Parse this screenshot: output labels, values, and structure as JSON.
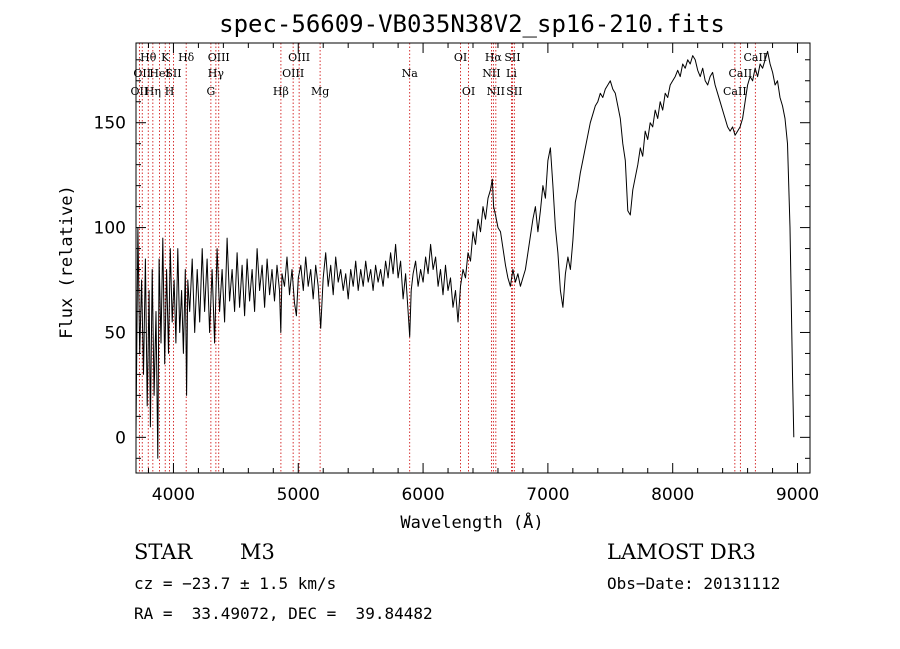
{
  "chart_data": {
    "type": "line",
    "title": "spec-56609-VB035N38V2_sp16-210.fits",
    "xlabel": "Wavelength (Å)",
    "ylabel": "Flux (relative)",
    "xlim": [
      3700,
      9100
    ],
    "ylim": [
      -17,
      188
    ],
    "x_ticks": [
      4000,
      5000,
      6000,
      7000,
      8000,
      9000
    ],
    "y_ticks": [
      0,
      50,
      100,
      150
    ],
    "line_color": "#000000",
    "marker_color": "#cc0000",
    "spectral_lines": [
      {
        "wavelength": 3727,
        "label": "OII",
        "row": 3
      },
      {
        "wavelength": 3750,
        "label": "OII",
        "row": 2
      },
      {
        "wavelength": 3798,
        "label": "Hθ",
        "row": 1
      },
      {
        "wavelength": 3835,
        "label": "Hη",
        "row": 3
      },
      {
        "wavelength": 3889,
        "label": "HeI",
        "row": 2
      },
      {
        "wavelength": 3934,
        "label": "K",
        "row": 1
      },
      {
        "wavelength": 3969,
        "label": "H",
        "row": 3
      },
      {
        "wavelength": 4000,
        "label": "SII",
        "row": 2
      },
      {
        "wavelength": 4102,
        "label": "Hδ",
        "row": 1
      },
      {
        "wavelength": 4300,
        "label": "G",
        "row": 3
      },
      {
        "wavelength": 4340,
        "label": "Hγ",
        "row": 2
      },
      {
        "wavelength": 4363,
        "label": "OIII",
        "row": 1
      },
      {
        "wavelength": 4861,
        "label": "Hβ",
        "row": 3
      },
      {
        "wavelength": 4959,
        "label": "OIII",
        "row": 2
      },
      {
        "wavelength": 5007,
        "label": "OIII",
        "row": 1
      },
      {
        "wavelength": 5175,
        "label": "Mg",
        "row": 3
      },
      {
        "wavelength": 5893,
        "label": "Na",
        "row": 2
      },
      {
        "wavelength": 6300,
        "label": "OI",
        "row": 1
      },
      {
        "wavelength": 6364,
        "label": "OI",
        "row": 3
      },
      {
        "wavelength": 6548,
        "label": "NII",
        "row": 2
      },
      {
        "wavelength": 6563,
        "label": "Hα",
        "row": 1
      },
      {
        "wavelength": 6583,
        "label": "NII",
        "row": 3
      },
      {
        "wavelength": 6708,
        "label": "Li",
        "row": 2
      },
      {
        "wavelength": 6716,
        "label": "SII",
        "row": 1
      },
      {
        "wavelength": 6731,
        "label": "SII",
        "row": 3
      },
      {
        "wavelength": 8498,
        "label": "CaII",
        "row": 3
      },
      {
        "wavelength": 8542,
        "label": "CaII",
        "row": 2
      },
      {
        "wavelength": 8662,
        "label": "CaII",
        "row": 1
      }
    ],
    "series": [
      {
        "name": "flux",
        "points": [
          [
            3700,
            2
          ],
          [
            3715,
            100
          ],
          [
            3730,
            40
          ],
          [
            3745,
            75
          ],
          [
            3760,
            30
          ],
          [
            3775,
            85
          ],
          [
            3790,
            15
          ],
          [
            3805,
            70
          ],
          [
            3815,
            5
          ],
          [
            3830,
            80
          ],
          [
            3845,
            20
          ],
          [
            3860,
            60
          ],
          [
            3875,
            -10
          ],
          [
            3885,
            85
          ],
          [
            3900,
            45
          ],
          [
            3915,
            95
          ],
          [
            3930,
            35
          ],
          [
            3945,
            80
          ],
          [
            3960,
            40
          ],
          [
            3975,
            90
          ],
          [
            3990,
            55
          ],
          [
            4005,
            75
          ],
          [
            4020,
            45
          ],
          [
            4035,
            90
          ],
          [
            4050,
            50
          ],
          [
            4065,
            70
          ],
          [
            4080,
            40
          ],
          [
            4095,
            80
          ],
          [
            4105,
            20
          ],
          [
            4115,
            75
          ],
          [
            4130,
            60
          ],
          [
            4150,
            85
          ],
          [
            4170,
            50
          ],
          [
            4190,
            80
          ],
          [
            4210,
            55
          ],
          [
            4230,
            90
          ],
          [
            4250,
            60
          ],
          [
            4270,
            85
          ],
          [
            4290,
            50
          ],
          [
            4310,
            80
          ],
          [
            4330,
            45
          ],
          [
            4350,
            90
          ],
          [
            4370,
            60
          ],
          [
            4390,
            80
          ],
          [
            4410,
            55
          ],
          [
            4430,
            95
          ],
          [
            4450,
            65
          ],
          [
            4470,
            80
          ],
          [
            4490,
            60
          ],
          [
            4510,
            88
          ],
          [
            4530,
            62
          ],
          [
            4550,
            82
          ],
          [
            4570,
            58
          ],
          [
            4590,
            85
          ],
          [
            4610,
            65
          ],
          [
            4630,
            80
          ],
          [
            4650,
            60
          ],
          [
            4670,
            90
          ],
          [
            4690,
            70
          ],
          [
            4710,
            82
          ],
          [
            4730,
            62
          ],
          [
            4750,
            85
          ],
          [
            4770,
            68
          ],
          [
            4790,
            80
          ],
          [
            4810,
            65
          ],
          [
            4830,
            82
          ],
          [
            4850,
            70
          ],
          [
            4860,
            50
          ],
          [
            4870,
            78
          ],
          [
            4890,
            72
          ],
          [
            4910,
            86
          ],
          [
            4930,
            68
          ],
          [
            4950,
            80
          ],
          [
            4970,
            64
          ],
          [
            4985,
            58
          ],
          [
            5000,
            76
          ],
          [
            5020,
            82
          ],
          [
            5040,
            70
          ],
          [
            5060,
            86
          ],
          [
            5080,
            72
          ],
          [
            5100,
            80
          ],
          [
            5120,
            66
          ],
          [
            5140,
            82
          ],
          [
            5160,
            72
          ],
          [
            5180,
            52
          ],
          [
            5200,
            76
          ],
          [
            5220,
            88
          ],
          [
            5240,
            72
          ],
          [
            5260,
            82
          ],
          [
            5280,
            68
          ],
          [
            5300,
            86
          ],
          [
            5320,
            74
          ],
          [
            5340,
            80
          ],
          [
            5360,
            70
          ],
          [
            5380,
            78
          ],
          [
            5400,
            66
          ],
          [
            5420,
            80
          ],
          [
            5440,
            72
          ],
          [
            5460,
            84
          ],
          [
            5480,
            70
          ],
          [
            5500,
            80
          ],
          [
            5520,
            72
          ],
          [
            5540,
            84
          ],
          [
            5560,
            74
          ],
          [
            5580,
            80
          ],
          [
            5600,
            70
          ],
          [
            5620,
            82
          ],
          [
            5640,
            74
          ],
          [
            5660,
            80
          ],
          [
            5680,
            72
          ],
          [
            5700,
            84
          ],
          [
            5720,
            76
          ],
          [
            5740,
            88
          ],
          [
            5760,
            78
          ],
          [
            5780,
            92
          ],
          [
            5800,
            76
          ],
          [
            5820,
            84
          ],
          [
            5840,
            66
          ],
          [
            5860,
            78
          ],
          [
            5880,
            60
          ],
          [
            5893,
            48
          ],
          [
            5905,
            70
          ],
          [
            5920,
            78
          ],
          [
            5940,
            84
          ],
          [
            5960,
            72
          ],
          [
            5980,
            80
          ],
          [
            6000,
            74
          ],
          [
            6020,
            86
          ],
          [
            6040,
            78
          ],
          [
            6060,
            92
          ],
          [
            6080,
            80
          ],
          [
            6100,
            86
          ],
          [
            6120,
            72
          ],
          [
            6140,
            80
          ],
          [
            6160,
            68
          ],
          [
            6180,
            82
          ],
          [
            6200,
            70
          ],
          [
            6220,
            76
          ],
          [
            6240,
            62
          ],
          [
            6260,
            70
          ],
          [
            6280,
            55
          ],
          [
            6300,
            72
          ],
          [
            6320,
            80
          ],
          [
            6340,
            76
          ],
          [
            6360,
            88
          ],
          [
            6380,
            84
          ],
          [
            6400,
            98
          ],
          [
            6420,
            92
          ],
          [
            6440,
            104
          ],
          [
            6460,
            98
          ],
          [
            6480,
            110
          ],
          [
            6500,
            104
          ],
          [
            6520,
            114
          ],
          [
            6540,
            118
          ],
          [
            6555,
            123
          ],
          [
            6565,
            110
          ],
          [
            6580,
            106
          ],
          [
            6600,
            100
          ],
          [
            6620,
            98
          ],
          [
            6640,
            90
          ],
          [
            6660,
            82
          ],
          [
            6680,
            76
          ],
          [
            6700,
            72
          ],
          [
            6720,
            80
          ],
          [
            6740,
            74
          ],
          [
            6760,
            78
          ],
          [
            6780,
            72
          ],
          [
            6800,
            76
          ],
          [
            6820,
            80
          ],
          [
            6840,
            88
          ],
          [
            6860,
            96
          ],
          [
            6880,
            104
          ],
          [
            6900,
            110
          ],
          [
            6920,
            98
          ],
          [
            6940,
            108
          ],
          [
            6960,
            120
          ],
          [
            6980,
            114
          ],
          [
            7000,
            132
          ],
          [
            7020,
            138
          ],
          [
            7040,
            120
          ],
          [
            7060,
            100
          ],
          [
            7080,
            88
          ],
          [
            7100,
            70
          ],
          [
            7120,
            62
          ],
          [
            7140,
            78
          ],
          [
            7160,
            86
          ],
          [
            7180,
            80
          ],
          [
            7200,
            94
          ],
          [
            7220,
            112
          ],
          [
            7240,
            118
          ],
          [
            7260,
            126
          ],
          [
            7280,
            132
          ],
          [
            7300,
            138
          ],
          [
            7320,
            144
          ],
          [
            7340,
            150
          ],
          [
            7360,
            154
          ],
          [
            7380,
            158
          ],
          [
            7400,
            160
          ],
          [
            7420,
            164
          ],
          [
            7440,
            162
          ],
          [
            7460,
            166
          ],
          [
            7480,
            168
          ],
          [
            7500,
            170
          ],
          [
            7520,
            166
          ],
          [
            7540,
            164
          ],
          [
            7560,
            158
          ],
          [
            7580,
            152
          ],
          [
            7600,
            140
          ],
          [
            7620,
            132
          ],
          [
            7640,
            108
          ],
          [
            7660,
            106
          ],
          [
            7680,
            118
          ],
          [
            7700,
            124
          ],
          [
            7720,
            130
          ],
          [
            7740,
            138
          ],
          [
            7760,
            134
          ],
          [
            7780,
            146
          ],
          [
            7800,
            142
          ],
          [
            7820,
            150
          ],
          [
            7840,
            148
          ],
          [
            7860,
            156
          ],
          [
            7880,
            152
          ],
          [
            7900,
            160
          ],
          [
            7920,
            156
          ],
          [
            7940,
            164
          ],
          [
            7960,
            162
          ],
          [
            7980,
            168
          ],
          [
            8000,
            170
          ],
          [
            8020,
            172
          ],
          [
            8040,
            175
          ],
          [
            8060,
            172
          ],
          [
            8080,
            178
          ],
          [
            8100,
            176
          ],
          [
            8120,
            180
          ],
          [
            8140,
            178
          ],
          [
            8160,
            182
          ],
          [
            8180,
            180
          ],
          [
            8200,
            175
          ],
          [
            8220,
            172
          ],
          [
            8240,
            176
          ],
          [
            8260,
            170
          ],
          [
            8280,
            168
          ],
          [
            8300,
            172
          ],
          [
            8320,
            174
          ],
          [
            8340,
            168
          ],
          [
            8360,
            164
          ],
          [
            8380,
            160
          ],
          [
            8400,
            156
          ],
          [
            8420,
            152
          ],
          [
            8440,
            148
          ],
          [
            8460,
            146
          ],
          [
            8480,
            148
          ],
          [
            8500,
            144
          ],
          [
            8520,
            146
          ],
          [
            8540,
            148
          ],
          [
            8560,
            152
          ],
          [
            8580,
            160
          ],
          [
            8600,
            168
          ],
          [
            8620,
            172
          ],
          [
            8640,
            170
          ],
          [
            8660,
            176
          ],
          [
            8680,
            172
          ],
          [
            8700,
            178
          ],
          [
            8720,
            176
          ],
          [
            8740,
            180
          ],
          [
            8760,
            184
          ],
          [
            8780,
            178
          ],
          [
            8800,
            174
          ],
          [
            8820,
            168
          ],
          [
            8840,
            170
          ],
          [
            8860,
            162
          ],
          [
            8880,
            158
          ],
          [
            8900,
            152
          ],
          [
            8920,
            140
          ],
          [
            8940,
            100
          ],
          [
            8960,
            30
          ],
          [
            8970,
            0
          ]
        ]
      }
    ]
  },
  "info": {
    "object_class": "STAR",
    "subclass": "M3",
    "survey": "LAMOST DR3",
    "redshift": "cz = −23.7 ± 1.5 km/s",
    "obs_date": "Obs−Date: 20131112",
    "coords": "RA =  33.49072, DEC =  39.84482"
  }
}
